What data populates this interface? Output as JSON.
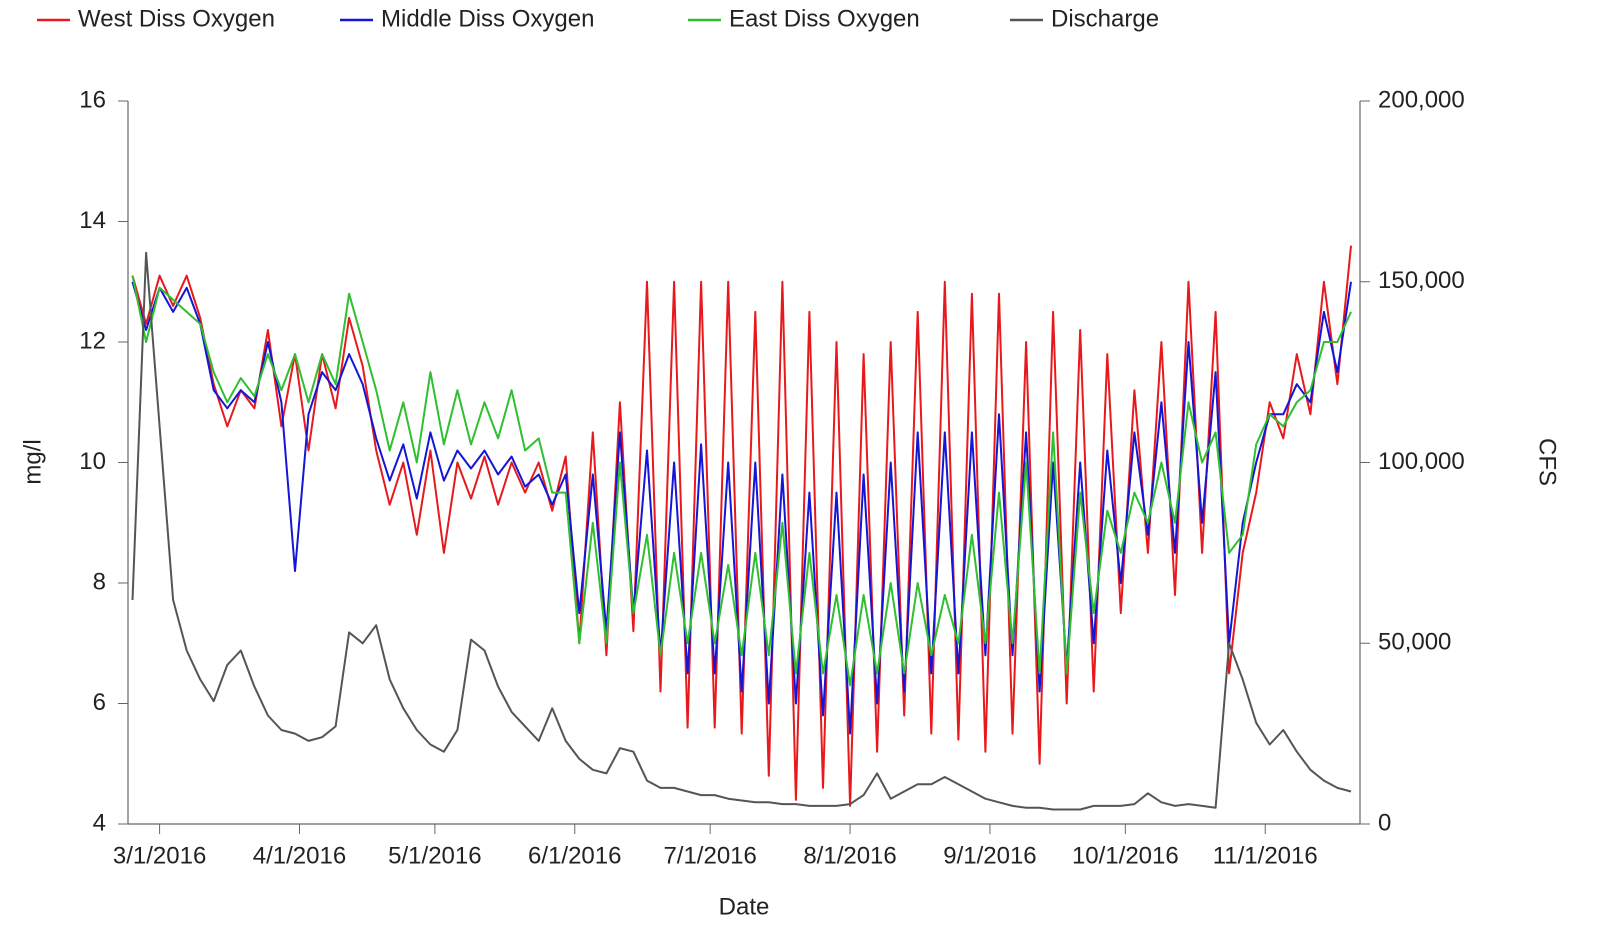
{
  "chart_data": {
    "type": "line",
    "x": [
      "2016-02-24",
      "2016-02-27",
      "2016-03-01",
      "2016-03-04",
      "2016-03-07",
      "2016-03-10",
      "2016-03-13",
      "2016-03-16",
      "2016-03-19",
      "2016-03-22",
      "2016-03-25",
      "2016-03-28",
      "2016-03-31",
      "2016-04-03",
      "2016-04-06",
      "2016-04-09",
      "2016-04-12",
      "2016-04-15",
      "2016-04-18",
      "2016-04-21",
      "2016-04-24",
      "2016-04-27",
      "2016-04-30",
      "2016-05-03",
      "2016-05-06",
      "2016-05-09",
      "2016-05-12",
      "2016-05-15",
      "2016-05-18",
      "2016-05-21",
      "2016-05-24",
      "2016-05-27",
      "2016-05-30",
      "2016-06-02",
      "2016-06-05",
      "2016-06-08",
      "2016-06-11",
      "2016-06-14",
      "2016-06-17",
      "2016-06-20",
      "2016-06-23",
      "2016-06-26",
      "2016-06-29",
      "2016-07-02",
      "2016-07-05",
      "2016-07-08",
      "2016-07-11",
      "2016-07-14",
      "2016-07-17",
      "2016-07-20",
      "2016-07-23",
      "2016-07-26",
      "2016-07-29",
      "2016-08-01",
      "2016-08-04",
      "2016-08-07",
      "2016-08-10",
      "2016-08-13",
      "2016-08-16",
      "2016-08-19",
      "2016-08-22",
      "2016-08-25",
      "2016-08-28",
      "2016-08-31",
      "2016-09-03",
      "2016-09-06",
      "2016-09-09",
      "2016-09-12",
      "2016-09-15",
      "2016-09-18",
      "2016-09-21",
      "2016-09-24",
      "2016-09-27",
      "2016-09-30",
      "2016-10-03",
      "2016-10-06",
      "2016-10-09",
      "2016-10-12",
      "2016-10-15",
      "2016-10-18",
      "2016-10-21",
      "2016-10-24",
      "2016-10-27",
      "2016-10-30",
      "2016-11-02",
      "2016-11-05",
      "2016-11-08",
      "2016-11-11",
      "2016-11-14",
      "2016-11-17",
      "2016-11-20"
    ],
    "series": [
      {
        "name": "West Diss Oxygen",
        "color": "#e8191c",
        "values": [
          13.1,
          12.3,
          13.1,
          12.6,
          13.1,
          12.4,
          11.3,
          10.6,
          11.2,
          10.9,
          12.2,
          10.6,
          11.8,
          10.2,
          11.8,
          10.9,
          12.4,
          11.6,
          10.2,
          9.3,
          10.0,
          8.8,
          10.2,
          8.5,
          10.0,
          9.4,
          10.1,
          9.3,
          10.0,
          9.5,
          10.0,
          9.2,
          10.1,
          7.0,
          10.5,
          6.8,
          11.0,
          7.2,
          13.0,
          6.2,
          13.0,
          5.6,
          13.0,
          5.6,
          13.0,
          5.5,
          12.5,
          4.8,
          13.0,
          4.4,
          12.5,
          4.6,
          12.0,
          4.3,
          11.8,
          5.2,
          12.0,
          5.8,
          12.5,
          5.5,
          13.0,
          5.4,
          12.8,
          5.2,
          12.8,
          5.5,
          12.0,
          5.0,
          12.5,
          6.0,
          12.2,
          6.2,
          11.8,
          7.5,
          11.2,
          8.5,
          12.0,
          7.8,
          13.0,
          8.5,
          12.5,
          6.5,
          8.5,
          9.5,
          11.0,
          10.4,
          11.8,
          10.8,
          13.0,
          11.3,
          13.6
        ]
      },
      {
        "name": "Middle Diss Oxygen",
        "color": "#1515d6",
        "values": [
          13.0,
          12.2,
          12.9,
          12.5,
          12.9,
          12.3,
          11.2,
          10.9,
          11.2,
          11.0,
          12.0,
          11.0,
          8.2,
          10.8,
          11.5,
          11.2,
          11.8,
          11.3,
          10.4,
          9.7,
          10.3,
          9.4,
          10.5,
          9.7,
          10.2,
          9.9,
          10.2,
          9.8,
          10.1,
          9.6,
          9.8,
          9.3,
          9.8,
          7.5,
          9.8,
          7.2,
          10.5,
          7.5,
          10.2,
          6.8,
          10.0,
          6.5,
          10.3,
          6.5,
          10.0,
          6.2,
          10.0,
          6.0,
          9.8,
          6.0,
          9.5,
          5.8,
          9.5,
          5.5,
          9.8,
          6.0,
          10.0,
          6.2,
          10.5,
          6.5,
          10.5,
          6.5,
          10.5,
          6.8,
          10.8,
          6.8,
          10.5,
          6.2,
          10.0,
          6.6,
          10.0,
          7.0,
          10.2,
          8.0,
          10.5,
          8.8,
          11.0,
          8.5,
          12.0,
          9.0,
          11.5,
          7.0,
          9.0,
          10.0,
          10.8,
          10.8,
          11.3,
          11.0,
          12.5,
          11.5,
          13.0
        ]
      },
      {
        "name": "East Diss Oxygen",
        "color": "#2fbf2f",
        "values": [
          13.1,
          12.0,
          12.9,
          12.7,
          12.5,
          12.3,
          11.5,
          11.0,
          11.4,
          11.1,
          11.8,
          11.2,
          11.8,
          11.0,
          11.8,
          11.3,
          12.8,
          12.0,
          11.2,
          10.2,
          11.0,
          10.0,
          11.5,
          10.3,
          11.2,
          10.3,
          11.0,
          10.4,
          11.2,
          10.2,
          10.4,
          9.5,
          9.5,
          7.0,
          9.0,
          7.0,
          10.0,
          7.5,
          8.8,
          6.8,
          8.5,
          7.0,
          8.5,
          7.0,
          8.3,
          6.8,
          8.5,
          6.8,
          9.0,
          6.5,
          8.5,
          6.5,
          7.8,
          6.3,
          7.8,
          6.5,
          8.0,
          6.5,
          8.0,
          6.8,
          7.8,
          7.0,
          8.8,
          7.0,
          9.5,
          7.0,
          10.0,
          6.5,
          10.5,
          6.5,
          9.5,
          7.5,
          9.2,
          8.5,
          9.5,
          9.0,
          10.0,
          9.0,
          11.0,
          10.0,
          10.5,
          8.5,
          8.8,
          10.3,
          10.8,
          10.6,
          11.0,
          11.2,
          12.0,
          12.0,
          12.5
        ]
      },
      {
        "name": "Discharge",
        "color": "#555555",
        "axis": "y2",
        "values": [
          62000,
          158000,
          110000,
          62000,
          48000,
          40000,
          34000,
          44000,
          48000,
          38000,
          30000,
          26000,
          25000,
          23000,
          24000,
          27000,
          53000,
          50000,
          55000,
          40000,
          32000,
          26000,
          22000,
          20000,
          26000,
          51000,
          48000,
          38000,
          31000,
          27000,
          23000,
          32000,
          23000,
          18000,
          15000,
          14000,
          21000,
          20000,
          12000,
          10000,
          10000,
          9000,
          8000,
          8000,
          7000,
          6500,
          6000,
          6000,
          5500,
          5500,
          5000,
          5000,
          5000,
          5500,
          8000,
          14000,
          7000,
          9000,
          11000,
          11000,
          13000,
          11000,
          9000,
          7000,
          6000,
          5000,
          4500,
          4500,
          4000,
          4000,
          4000,
          5000,
          5000,
          5000,
          5500,
          8500,
          6000,
          5000,
          5500,
          5000,
          4500,
          50000,
          40000,
          28000,
          22000,
          26000,
          20000,
          15000,
          12000,
          10000,
          9000
        ]
      }
    ],
    "xlabel": "Date",
    "ylabel": "mg/l",
    "y2label": "CFS",
    "xlim": [
      "2016-02-23",
      "2016-11-22"
    ],
    "xticks": [
      {
        "value": "2016-03-01",
        "label": "3/1/2016"
      },
      {
        "value": "2016-04-01",
        "label": "4/1/2016"
      },
      {
        "value": "2016-05-01",
        "label": "5/1/2016"
      },
      {
        "value": "2016-06-01",
        "label": "6/1/2016"
      },
      {
        "value": "2016-07-01",
        "label": "7/1/2016"
      },
      {
        "value": "2016-08-01",
        "label": "8/1/2016"
      },
      {
        "value": "2016-09-01",
        "label": "9/1/2016"
      },
      {
        "value": "2016-10-01",
        "label": "10/1/2016"
      },
      {
        "value": "2016-11-01",
        "label": "11/1/2016"
      }
    ],
    "ylim": [
      4,
      16
    ],
    "yticks": [
      4,
      6,
      8,
      10,
      12,
      14,
      16
    ],
    "y2lim": [
      0,
      200000
    ],
    "y2ticks": [
      0,
      {
        "value": 50000,
        "label": "50,000"
      },
      {
        "value": 100000,
        "label": "100,000"
      },
      {
        "value": 150000,
        "label": "150,000"
      },
      {
        "value": 200000,
        "label": "200,000"
      }
    ],
    "legend": "top-left"
  }
}
